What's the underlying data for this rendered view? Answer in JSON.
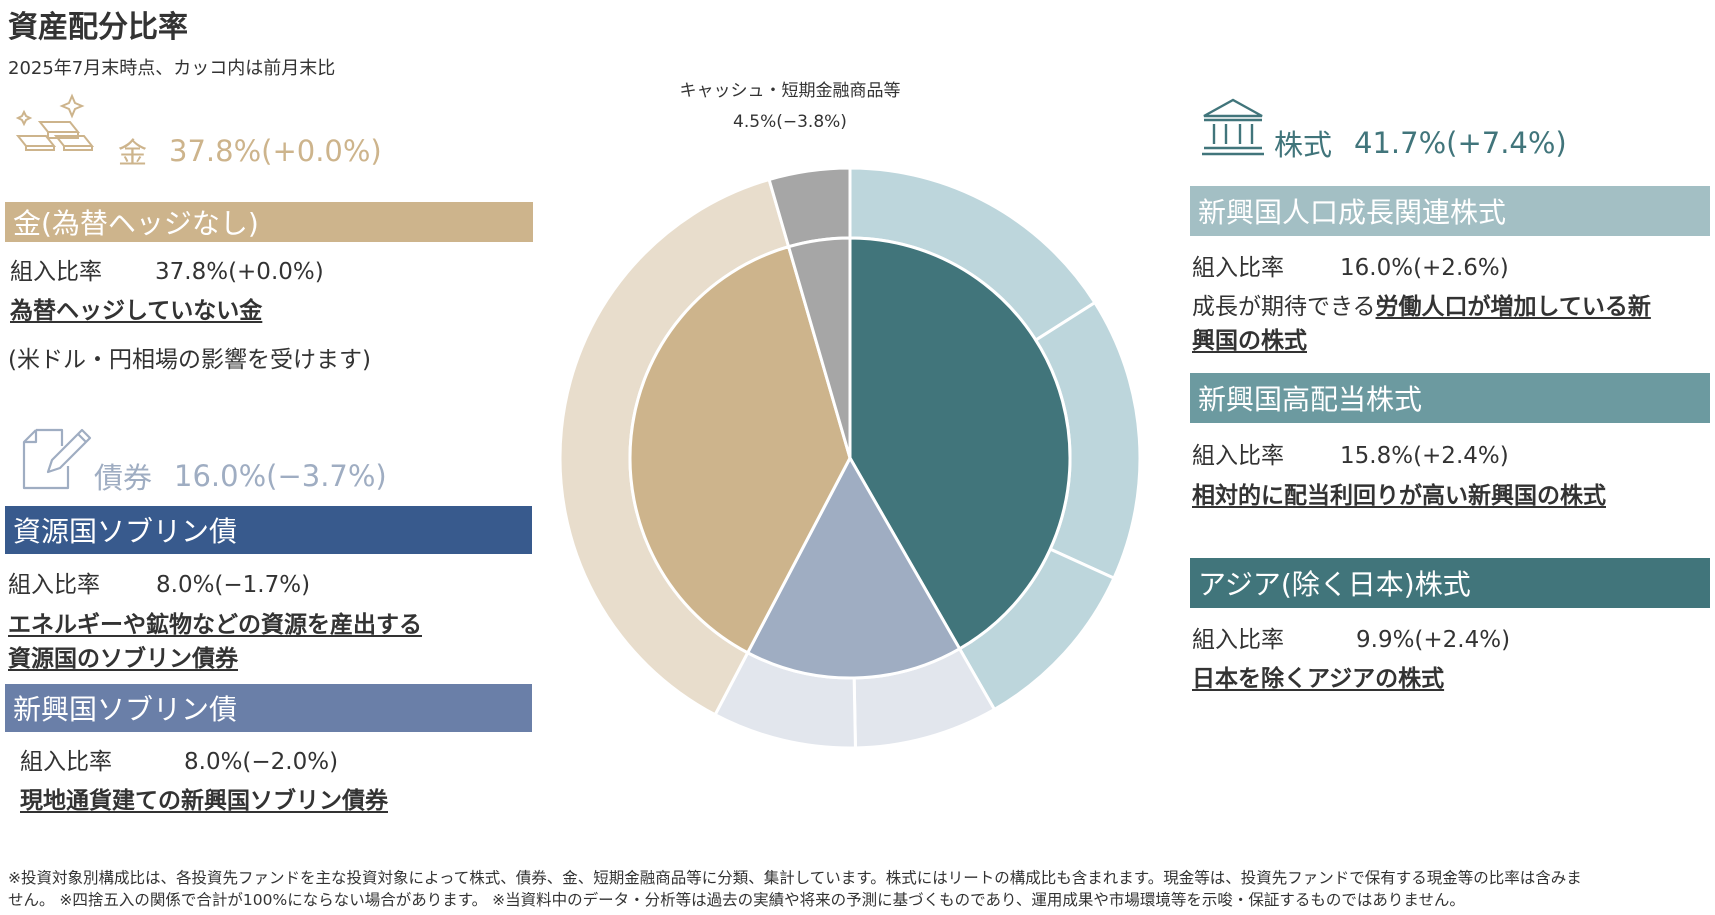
{
  "header": {
    "title": "資産配分比率",
    "subtitle": "2025年7月末時点、カッコ内は前月末比"
  },
  "colors": {
    "gold": "#cdb48c",
    "gold_light": "#e8ddcc",
    "bond": "#9fadc2",
    "bond_light": "#e2e6ed",
    "bond_dark": "#385a8d",
    "bond_mid": "#6a7fa8",
    "equity": "#41757b",
    "equity_light": "#bdd6dc",
    "equity_bar1": "#a3bfc4",
    "equity_bar2": "#6c9aa0",
    "equity_bar3": "#41757b",
    "cash": "#a6a6a6"
  },
  "gold": {
    "heading_label": "金",
    "heading_value": "37.8%(+0.0%)",
    "items": [
      {
        "bar": "金(為替ヘッジなし)",
        "ratio_label": "組入比率",
        "ratio_value": "37.8%(+0.0%)",
        "desc": "為替ヘッジしていない金",
        "note": "(米ドル・円相場の影響を受けます)"
      }
    ]
  },
  "bond": {
    "heading_label": "債券",
    "heading_value": "16.0%(−3.7%)",
    "items": [
      {
        "bar": "資源国ソブリン債",
        "ratio_label": "組入比率",
        "ratio_value": "8.0%(−1.7%)",
        "desc_line1": "エネルギーや鉱物などの資源を産出する",
        "desc_line2": "資源国のソブリン債券"
      },
      {
        "bar": "新興国ソブリン債",
        "ratio_label": "組入比率",
        "ratio_value": "8.0%(−2.0%)",
        "desc": "現地通貨建ての新興国ソブリン債券"
      }
    ]
  },
  "equity": {
    "heading_label": "株式",
    "heading_value": "41.7%(+7.4%)",
    "items": [
      {
        "bar": "新興国人口成長関連株式",
        "ratio_label": "組入比率",
        "ratio_value": "16.0%(+2.6%)",
        "desc_plain": "成長が期待できる",
        "desc_bold1": "労働人口が増加している新",
        "desc_bold2": "興国の株式"
      },
      {
        "bar": "新興国高配当株式",
        "ratio_label": "組入比率",
        "ratio_value": "15.8%(+2.4%)",
        "desc": "相対的に配当利回りが高い新興国の株式"
      },
      {
        "bar": "アジア(除く日本)株式",
        "ratio_label": "組入比率",
        "ratio_value": "9.9%(+2.4%)",
        "desc": "日本を除くアジアの株式"
      }
    ]
  },
  "cash": {
    "label": "キャッシュ・短期金融商品等",
    "value": "4.5%(−3.8%)"
  },
  "chart_data": {
    "type": "pie",
    "subtype": "double-ring (sunburst)",
    "title": "資産配分比率",
    "start": "12 o'clock, clockwise",
    "inner": [
      {
        "name": "株式",
        "value": 41.7
      },
      {
        "name": "債券",
        "value": 16.0
      },
      {
        "name": "金",
        "value": 37.8
      },
      {
        "name": "キャッシュ・短期金融商品等",
        "value": 4.5
      }
    ],
    "outer": [
      {
        "name": "新興国人口成長関連株式",
        "value": 16.0,
        "parent": "株式"
      },
      {
        "name": "新興国高配当株式",
        "value": 15.8,
        "parent": "株式"
      },
      {
        "name": "アジア(除く日本)株式",
        "value": 9.9,
        "parent": "株式"
      },
      {
        "name": "新興国ソブリン債",
        "value": 8.0,
        "parent": "債券"
      },
      {
        "name": "資源国ソブリン債",
        "value": 8.0,
        "parent": "債券"
      },
      {
        "name": "金(為替ヘッジなし)",
        "value": 37.8,
        "parent": "金"
      },
      {
        "name": "キャッシュ・短期金融商品等",
        "value": 4.5,
        "parent": "キャッシュ・短期金融商品等"
      }
    ]
  },
  "footnote": {
    "line1": "※投資対象別構成比は、各投資先ファンドを主な投資対象によって株式、債券、金、短期金融商品等に分類、集計しています。株式にはリートの構成比も含まれます。現金等は、投資先ファンドで保有する現金等の比率は含みま",
    "line2": "せん。 ※四捨五入の関係で合計が100%にならない場合があります。 ※当資料中のデータ・分析等は過去の実績や将来の予測に基づくものであり、運用成果や市場環境等を示唆・保証するものではありません。"
  }
}
